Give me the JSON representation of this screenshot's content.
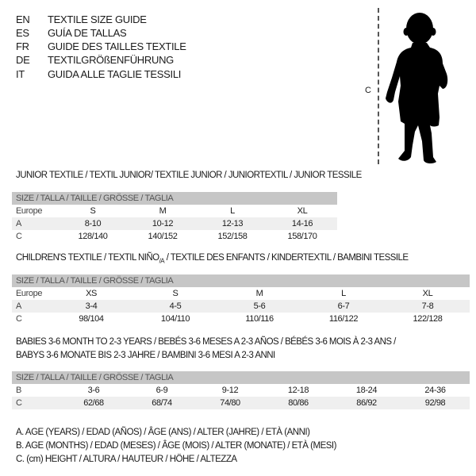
{
  "languages": [
    {
      "code": "EN",
      "text": "TEXTILE SIZE GUIDE"
    },
    {
      "code": "ES",
      "text": "GUÍA DE TALLAS"
    },
    {
      "code": "FR",
      "text": "GUIDE DES TAILLES TEXTILE"
    },
    {
      "code": "DE",
      "text": "TEXTILGRÖßENFÜHRUNG"
    },
    {
      "code": "IT",
      "text": "GUIDA ALLE TAGLIE TESSILI"
    }
  ],
  "figure": {
    "height_label": "C"
  },
  "junior": {
    "title": "JUNIOR TEXTILE / TEXTIL JUNIOR/ TEXTILE JUNIOR / JUNIORTEXTIL / JUNIOR TESSILE",
    "header": "SIZE / TALLA / TAILLE / GRÖSSE / TAGLIA",
    "rows": [
      {
        "label": "Europe",
        "values": [
          "S",
          "M",
          "L",
          "XL"
        ]
      },
      {
        "label": "A",
        "values": [
          "8-10",
          "10-12",
          "12-13",
          "14-16"
        ]
      },
      {
        "label": "C",
        "values": [
          "128/140",
          "140/152",
          "152/158",
          "158/170"
        ]
      }
    ]
  },
  "children": {
    "title_pre": "CHILDREN'S TEXTILE / TEXTIL NIÑO",
    "title_sub": "/A",
    "title_post": " / TEXTILE DES ENFANTS / KINDERTEXTIL / BAMBINI TESSILE",
    "header": "SIZE / TALLA / TAILLE / GRÖSSE / TAGLIA",
    "rows": [
      {
        "label": "Europe",
        "values": [
          "XS",
          "S",
          "M",
          "L",
          "XL"
        ]
      },
      {
        "label": "A",
        "values": [
          "3-4",
          "4-5",
          "5-6",
          "6-7",
          "7-8"
        ]
      },
      {
        "label": "C",
        "values": [
          "98/104",
          "104/110",
          "110/116",
          "116/122",
          "122/128"
        ]
      }
    ]
  },
  "babies": {
    "title_line1": "BABIES 3-6 MONTH TO 2-3 YEARS / BEBÉS 3-6 MESES A 2-3 AÑOS / BÉBÉS 3-6 MOIS À 2-3 ANS /",
    "title_line2": "BABYS 3-6 MONATE BIS 2-3 JAHRE / BAMBINI 3-6 MESI A 2-3 ANNI",
    "header": "SIZE / TALLA / TAILLE / GRÖSSE / TAGLIA",
    "rows": [
      {
        "label": "B",
        "values": [
          "3-6",
          "6-9",
          "9-12",
          "12-18",
          "18-24",
          "24-36"
        ]
      },
      {
        "label": "C",
        "values": [
          "62/68",
          "68/74",
          "74/80",
          "80/86",
          "86/92",
          "92/98"
        ]
      }
    ]
  },
  "legend": [
    "A. AGE (YEARS) / EDAD (AÑOS) / ÂGE (ANS) / ALTER (JAHRE) / ETÀ (ANNI)",
    "B. AGE (MONTHS) / EDAD (MESES) / ÂGE (MOIS) / ALTER (MONATE) / ETÀ (MESI)",
    "C. (cm) HEIGHT / ALTURA / HAUTEUR / HÖHE / ALTEZZA"
  ]
}
